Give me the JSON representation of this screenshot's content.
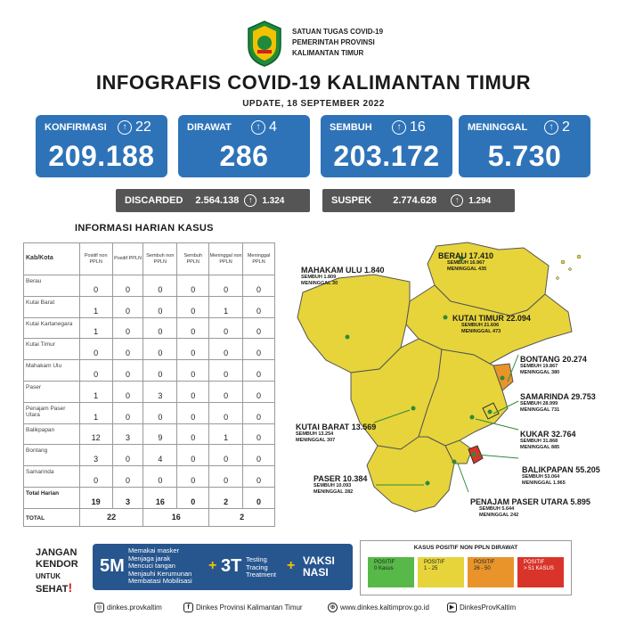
{
  "header": {
    "org_lines": [
      "SATUAN TUGAS COVID-19",
      "PEMERINTAH PROVINSI",
      "KALIMANTAN TIMUR"
    ],
    "title": "INFOGRAFIS COVID-19 KALIMANTAN TIMUR",
    "update": "UPDATE, 18 SEPTEMBER 2022"
  },
  "stats": [
    {
      "label": "KONFIRMASI",
      "delta": "22",
      "value": "209.188"
    },
    {
      "label": "DIRAWAT",
      "delta": "4",
      "value": "286"
    },
    {
      "label": "SEMBUH",
      "delta": "16",
      "value": "203.172"
    },
    {
      "label": "MENINGGAL",
      "delta": "2",
      "value": "5.730"
    }
  ],
  "strips": {
    "discarded": {
      "label": "DISCARDED",
      "value": "2.564.138",
      "delta": "1.324"
    },
    "suspek": {
      "label": "SUSPEK",
      "value": "2.774.628",
      "delta": "1.294"
    }
  },
  "table": {
    "title": "INFORMASI HARIAN KASUS",
    "headers": [
      "Kab/Kota",
      "Positif non PPLN",
      "Positif PPLN",
      "Sembuh non PPLN",
      "Sembuh PPLN",
      "Meninggal non PPLN",
      "Meninggal PPLN"
    ],
    "rows": [
      {
        "name": "Berau",
        "v": [
          "0",
          "0",
          "0",
          "0",
          "0",
          "0"
        ]
      },
      {
        "name": "Kutai Barat",
        "v": [
          "1",
          "0",
          "0",
          "0",
          "1",
          "0"
        ]
      },
      {
        "name": "Kutai Kartanegara",
        "v": [
          "1",
          "0",
          "0",
          "0",
          "0",
          "0"
        ]
      },
      {
        "name": "Kutai Timur",
        "v": [
          "0",
          "0",
          "0",
          "0",
          "0",
          "0"
        ]
      },
      {
        "name": "Mahakam Ulu",
        "v": [
          "0",
          "0",
          "0",
          "0",
          "0",
          "0"
        ]
      },
      {
        "name": "Paser",
        "v": [
          "1",
          "0",
          "3",
          "0",
          "0",
          "0"
        ]
      },
      {
        "name": "Penajam Paser Utara",
        "v": [
          "1",
          "0",
          "0",
          "0",
          "0",
          "0"
        ]
      },
      {
        "name": "Balikpapan",
        "v": [
          "12",
          "3",
          "9",
          "0",
          "1",
          "0"
        ]
      },
      {
        "name": "Bontang",
        "v": [
          "3",
          "0",
          "4",
          "0",
          "0",
          "0"
        ]
      },
      {
        "name": "Samarinda",
        "v": [
          "0",
          "0",
          "0",
          "0",
          "0",
          "0"
        ]
      },
      {
        "name": "Total Harian",
        "v": [
          "19",
          "3",
          "16",
          "0",
          "2",
          "0"
        ]
      }
    ],
    "grand": {
      "name": "TOTAL",
      "positif": "22",
      "sembuh": "16",
      "meninggal": "2"
    }
  },
  "map": {
    "regions": [
      {
        "name": "BERAU",
        "value": "17.410",
        "sembuh": "SEMBUH 16.967",
        "meninggal": "MENINGGAL 435"
      },
      {
        "name": "MAHAKAM ULU",
        "value": "1.840",
        "sembuh": "SEMBUH 1.809",
        "meninggal": "MENINGGAL 30"
      },
      {
        "name": "KUTAI TIMUR",
        "value": "22.094",
        "sembuh": "SEMBUH 21.606",
        "meninggal": "MENINGGAL 473"
      },
      {
        "name": "BONTANG",
        "value": "20.274",
        "sembuh": "SEMBUH 19.867",
        "meninggal": "MENINGGAL 380"
      },
      {
        "name": "SAMARINDA",
        "value": "29.753",
        "sembuh": "SEMBUH 28.999",
        "meninggal": "MENINGGAL 731"
      },
      {
        "name": "KUTAI BARAT",
        "value": "13.569",
        "sembuh": "SEMBUH 13.254",
        "meninggal": "MENINGGAL 307"
      },
      {
        "name": "KUKAR",
        "value": "32.764",
        "sembuh": "SEMBUH 31.868",
        "meninggal": "MENINGGAL 885"
      },
      {
        "name": "BALIKPAPAN",
        "value": "55.205",
        "sembuh": "SEMBUH 53.064",
        "meninggal": "MENINGGAL 1.965"
      },
      {
        "name": "PASER",
        "value": "10.384",
        "sembuh": "SEMBUH 10.093",
        "meninggal": "MENINGGAL 282"
      },
      {
        "name": "PENAJAM PASER UTARA",
        "value": "5.895",
        "sembuh": "SEMBUH 5.644",
        "meninggal": "MENINGGAL 242"
      }
    ],
    "colors": {
      "yellow": "#e6d43a",
      "orange": "#e8942a",
      "red": "#d9342a",
      "green": "#4caf3f"
    }
  },
  "footer": {
    "jangan": [
      "JANGAN",
      "KENDOR",
      "UNTUK",
      "SEHAT",
      "!"
    ],
    "fm_big": "5M",
    "fm_items": [
      "Memakai masker",
      "Menjaga jarak",
      "Mencuci tangan",
      "Menjauhi Kerumunan",
      "Membatasi Mobilisasi"
    ],
    "plus": "+",
    "tt_big": "3T",
    "tt_items": [
      "Testing",
      "Tracing",
      "Treatment"
    ],
    "vaksi": [
      "VAKSI",
      "NASI"
    ],
    "legend_title": "KASUS POSITIF NON PPLN DIRAWAT",
    "legend": [
      {
        "label": "POSITIF",
        "range": "0 Kasus",
        "color": "#57b947"
      },
      {
        "label": "POSITIF",
        "range": "1 - 25",
        "color": "#e6d43a"
      },
      {
        "label": "POSITIF",
        "range": "26 - 50",
        "color": "#e8942a"
      },
      {
        "label": "POSITIF",
        "range": "> 51 KASUS",
        "color": "#d9342a"
      }
    ],
    "social": [
      "dinkes.provkaltim",
      "Dinkes Provinsi Kalimantan Timur",
      "www.dinkes.kaltimprov.go.id",
      "DinkesProvKaltim"
    ]
  }
}
